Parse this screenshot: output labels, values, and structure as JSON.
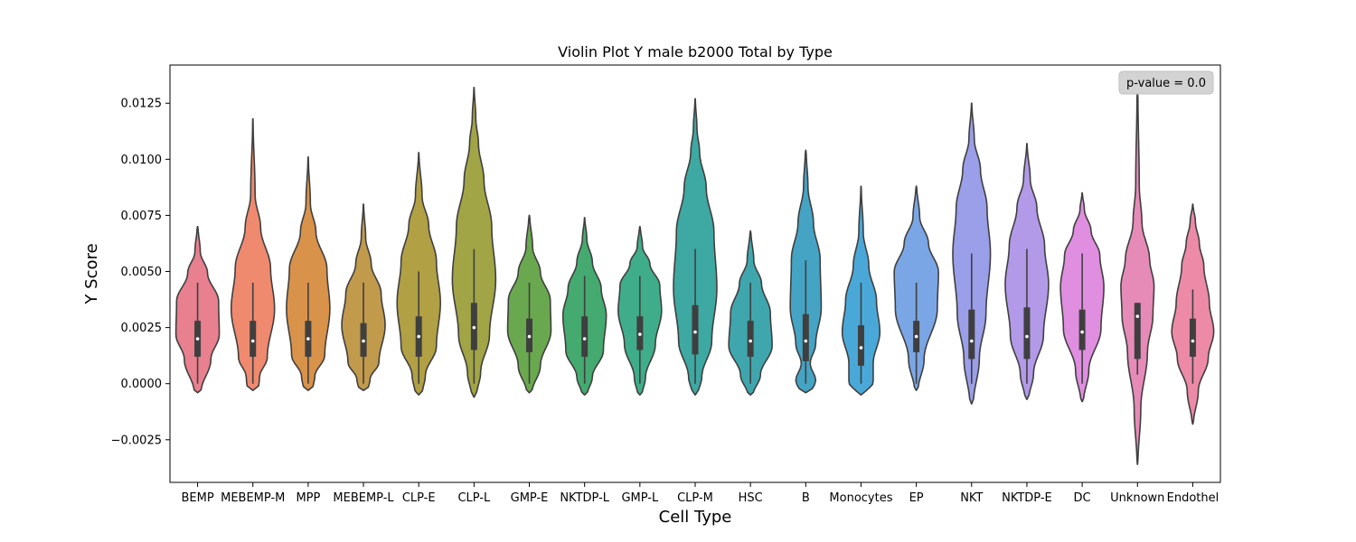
{
  "chart_data": {
    "type": "violin",
    "title": "Violin Plot Y male b2000 Total by Type",
    "xlabel": "Cell Type",
    "ylabel": "Y Score",
    "ylim": [
      -0.0044,
      0.0142
    ],
    "yticks": [
      -0.0025,
      0.0,
      0.0025,
      0.005,
      0.0075,
      0.01,
      0.0125
    ],
    "ytick_labels": [
      "−0.0025",
      "0.0000",
      "0.0025",
      "0.0050",
      "0.0075",
      "0.0100",
      "0.0125"
    ],
    "grid": false,
    "annotation": {
      "text": "p-value = 0.0",
      "placement": "top-right"
    },
    "categories": [
      {
        "name": "BEMP",
        "color": "#e8808f",
        "min": -0.0004,
        "max": 0.007,
        "q1": 0.0012,
        "median": 0.002,
        "q3": 0.0028,
        "wlo": 0.0,
        "whi": 0.0045,
        "width": [
          [
            0.0,
            0.15
          ],
          [
            0.2,
            0.6
          ],
          [
            0.35,
            0.98
          ],
          [
            0.55,
            0.95
          ],
          [
            0.72,
            0.45
          ],
          [
            0.85,
            0.12
          ],
          [
            1.0,
            0.02
          ]
        ]
      },
      {
        "name": "MEBEMP-M",
        "color": "#ef8a6f",
        "min": -0.0003,
        "max": 0.0118,
        "q1": 0.0012,
        "median": 0.0019,
        "q3": 0.0028,
        "wlo": 0.0,
        "whi": 0.0045,
        "width": [
          [
            0.0,
            0.25
          ],
          [
            0.05,
            0.3
          ],
          [
            0.12,
            0.65
          ],
          [
            0.3,
            0.98
          ],
          [
            0.45,
            0.8
          ],
          [
            0.6,
            0.35
          ],
          [
            0.72,
            0.1
          ],
          [
            1.0,
            0.01
          ]
        ]
      },
      {
        "name": "MPP",
        "color": "#d9924a",
        "min": -0.0003,
        "max": 0.0101,
        "q1": 0.0012,
        "median": 0.002,
        "q3": 0.0028,
        "wlo": 0.0,
        "whi": 0.0045,
        "width": [
          [
            0.0,
            0.2
          ],
          [
            0.06,
            0.3
          ],
          [
            0.15,
            0.75
          ],
          [
            0.35,
            0.98
          ],
          [
            0.52,
            0.85
          ],
          [
            0.68,
            0.35
          ],
          [
            0.8,
            0.1
          ],
          [
            1.0,
            0.01
          ]
        ]
      },
      {
        "name": "MEBEMP-L",
        "color": "#c19a4c",
        "min": -0.0003,
        "max": 0.008,
        "q1": 0.0012,
        "median": 0.0019,
        "q3": 0.0027,
        "wlo": 0.0,
        "whi": 0.0045,
        "width": [
          [
            0.0,
            0.2
          ],
          [
            0.06,
            0.3
          ],
          [
            0.15,
            0.7
          ],
          [
            0.35,
            0.98
          ],
          [
            0.52,
            0.8
          ],
          [
            0.68,
            0.35
          ],
          [
            0.82,
            0.1
          ],
          [
            1.0,
            0.01
          ]
        ]
      },
      {
        "name": "CLP-E",
        "color": "#b1a044",
        "min": -0.0005,
        "max": 0.0103,
        "q1": 0.0012,
        "median": 0.0021,
        "q3": 0.003,
        "wlo": 0.0,
        "whi": 0.005,
        "width": [
          [
            0.0,
            0.15
          ],
          [
            0.08,
            0.3
          ],
          [
            0.2,
            0.8
          ],
          [
            0.38,
            0.98
          ],
          [
            0.55,
            0.8
          ],
          [
            0.7,
            0.45
          ],
          [
            0.82,
            0.15
          ],
          [
            1.0,
            0.01
          ]
        ]
      },
      {
        "name": "CLP-L",
        "color": "#a2a545",
        "min": -0.0006,
        "max": 0.0132,
        "q1": 0.0015,
        "median": 0.0025,
        "q3": 0.0036,
        "wlo": 0.0,
        "whi": 0.006,
        "width": [
          [
            0.0,
            0.1
          ],
          [
            0.08,
            0.3
          ],
          [
            0.2,
            0.7
          ],
          [
            0.38,
            0.98
          ],
          [
            0.55,
            0.8
          ],
          [
            0.7,
            0.45
          ],
          [
            0.82,
            0.2
          ],
          [
            0.9,
            0.08
          ],
          [
            1.0,
            0.01
          ]
        ]
      },
      {
        "name": "GMP-E",
        "color": "#6aa84f",
        "min": -0.0004,
        "max": 0.0075,
        "q1": 0.0014,
        "median": 0.0021,
        "q3": 0.0029,
        "wlo": 0.0,
        "whi": 0.0045,
        "width": [
          [
            0.0,
            0.12
          ],
          [
            0.15,
            0.5
          ],
          [
            0.35,
            0.98
          ],
          [
            0.52,
            0.95
          ],
          [
            0.68,
            0.5
          ],
          [
            0.82,
            0.15
          ],
          [
            1.0,
            0.02
          ]
        ]
      },
      {
        "name": "NKTDP-L",
        "color": "#45aa70",
        "min": -0.0005,
        "max": 0.0074,
        "q1": 0.0012,
        "median": 0.002,
        "q3": 0.003,
        "wlo": 0.0,
        "whi": 0.0048,
        "width": [
          [
            0.0,
            0.12
          ],
          [
            0.1,
            0.35
          ],
          [
            0.25,
            0.85
          ],
          [
            0.45,
            0.98
          ],
          [
            0.6,
            0.75
          ],
          [
            0.75,
            0.35
          ],
          [
            0.88,
            0.1
          ],
          [
            1.0,
            0.01
          ]
        ]
      },
      {
        "name": "GMP-L",
        "color": "#40ad8a",
        "min": -0.0005,
        "max": 0.007,
        "q1": 0.0015,
        "median": 0.0022,
        "q3": 0.003,
        "wlo": 0.0,
        "whi": 0.0048,
        "width": [
          [
            0.0,
            0.1
          ],
          [
            0.1,
            0.25
          ],
          [
            0.3,
            0.7
          ],
          [
            0.5,
            0.98
          ],
          [
            0.65,
            0.9
          ],
          [
            0.78,
            0.45
          ],
          [
            0.88,
            0.12
          ],
          [
            1.0,
            0.02
          ]
        ]
      },
      {
        "name": "CLP-M",
        "color": "#3ea8a2",
        "min": -0.0005,
        "max": 0.0127,
        "q1": 0.0013,
        "median": 0.0023,
        "q3": 0.0035,
        "wlo": 0.0,
        "whi": 0.006,
        "width": [
          [
            0.0,
            0.12
          ],
          [
            0.06,
            0.3
          ],
          [
            0.18,
            0.75
          ],
          [
            0.36,
            0.98
          ],
          [
            0.55,
            0.85
          ],
          [
            0.7,
            0.5
          ],
          [
            0.82,
            0.2
          ],
          [
            0.9,
            0.08
          ],
          [
            1.0,
            0.01
          ]
        ]
      },
      {
        "name": "HSC",
        "color": "#3fa6ae",
        "min": -0.0005,
        "max": 0.0068,
        "q1": 0.0012,
        "median": 0.0019,
        "q3": 0.0028,
        "wlo": 0.0,
        "whi": 0.0045,
        "width": [
          [
            0.0,
            0.12
          ],
          [
            0.12,
            0.45
          ],
          [
            0.3,
            0.98
          ],
          [
            0.5,
            0.9
          ],
          [
            0.68,
            0.5
          ],
          [
            0.82,
            0.15
          ],
          [
            1.0,
            0.02
          ]
        ]
      },
      {
        "name": "B",
        "color": "#45a4c4",
        "min": -0.0004,
        "max": 0.0104,
        "q1": 0.001,
        "median": 0.0019,
        "q3": 0.0031,
        "wlo": 0.0,
        "whi": 0.0055,
        "width": [
          [
            0.0,
            0.25
          ],
          [
            0.05,
            0.45
          ],
          [
            0.12,
            0.2
          ],
          [
            0.2,
            0.45
          ],
          [
            0.35,
            0.7
          ],
          [
            0.55,
            0.65
          ],
          [
            0.7,
            0.35
          ],
          [
            0.85,
            0.1
          ],
          [
            1.0,
            0.02
          ]
        ]
      },
      {
        "name": "Monocytes",
        "color": "#4aa8d8",
        "min": -0.0005,
        "max": 0.0088,
        "q1": 0.0008,
        "median": 0.0016,
        "q3": 0.0026,
        "wlo": 0.0,
        "whi": 0.0045,
        "width": [
          [
            0.0,
            0.12
          ],
          [
            0.06,
            0.55
          ],
          [
            0.15,
            0.55
          ],
          [
            0.3,
            0.85
          ],
          [
            0.45,
            0.7
          ],
          [
            0.62,
            0.35
          ],
          [
            0.78,
            0.1
          ],
          [
            1.0,
            0.01
          ]
        ]
      },
      {
        "name": "EP",
        "color": "#7ba6e6",
        "min": -0.0003,
        "max": 0.0088,
        "q1": 0.0014,
        "median": 0.0021,
        "q3": 0.0028,
        "wlo": 0.0,
        "whi": 0.0045,
        "width": [
          [
            0.0,
            0.08
          ],
          [
            0.15,
            0.35
          ],
          [
            0.4,
            0.95
          ],
          [
            0.58,
            1.0
          ],
          [
            0.72,
            0.55
          ],
          [
            0.85,
            0.15
          ],
          [
            1.0,
            0.02
          ]
        ]
      },
      {
        "name": "NKT",
        "color": "#9b9ee8",
        "min": -0.0009,
        "max": 0.0125,
        "q1": 0.0011,
        "median": 0.0019,
        "q3": 0.0033,
        "wlo": 0.0,
        "whi": 0.0058,
        "width": [
          [
            0.0,
            0.08
          ],
          [
            0.15,
            0.35
          ],
          [
            0.3,
            0.65
          ],
          [
            0.5,
            0.85
          ],
          [
            0.65,
            0.7
          ],
          [
            0.78,
            0.4
          ],
          [
            0.88,
            0.12
          ],
          [
            1.0,
            0.01
          ]
        ]
      },
      {
        "name": "NKTDP-E",
        "color": "#b39ae8",
        "min": -0.0007,
        "max": 0.0107,
        "q1": 0.0011,
        "median": 0.0021,
        "q3": 0.0034,
        "wlo": 0.0,
        "whi": 0.006,
        "width": [
          [
            0.0,
            0.08
          ],
          [
            0.1,
            0.3
          ],
          [
            0.25,
            0.75
          ],
          [
            0.45,
            0.98
          ],
          [
            0.6,
            0.8
          ],
          [
            0.75,
            0.45
          ],
          [
            0.86,
            0.15
          ],
          [
            1.0,
            0.01
          ]
        ]
      },
      {
        "name": "DC",
        "color": "#e08ee0",
        "min": -0.0008,
        "max": 0.0085,
        "q1": 0.0015,
        "median": 0.0023,
        "q3": 0.0033,
        "wlo": 0.0,
        "whi": 0.0058,
        "width": [
          [
            0.0,
            0.06
          ],
          [
            0.15,
            0.3
          ],
          [
            0.35,
            0.85
          ],
          [
            0.55,
            0.98
          ],
          [
            0.7,
            0.8
          ],
          [
            0.82,
            0.4
          ],
          [
            0.92,
            0.1
          ],
          [
            1.0,
            0.01
          ]
        ]
      },
      {
        "name": "Unknown",
        "color": "#e68bb8",
        "min": -0.0036,
        "max": 0.013,
        "q1": 0.0011,
        "median": 0.003,
        "q3": 0.0036,
        "wlo": 0.0004,
        "whi": 0.0036,
        "width": [
          [
            0.0,
            0.02
          ],
          [
            0.15,
            0.15
          ],
          [
            0.3,
            0.45
          ],
          [
            0.4,
            0.7
          ],
          [
            0.48,
            0.75
          ],
          [
            0.55,
            0.55
          ],
          [
            0.65,
            0.2
          ],
          [
            0.75,
            0.08
          ],
          [
            1.0,
            0.02
          ]
        ]
      },
      {
        "name": "Endothel",
        "color": "#ec8aa8",
        "min": -0.0018,
        "max": 0.008,
        "q1": 0.0012,
        "median": 0.0019,
        "q3": 0.0029,
        "wlo": 0.0,
        "whi": 0.0042,
        "width": [
          [
            0.0,
            0.03
          ],
          [
            0.15,
            0.25
          ],
          [
            0.3,
            0.7
          ],
          [
            0.42,
            0.95
          ],
          [
            0.55,
            0.75
          ],
          [
            0.72,
            0.5
          ],
          [
            0.82,
            0.3
          ],
          [
            0.92,
            0.12
          ],
          [
            1.0,
            0.01
          ]
        ]
      }
    ]
  }
}
